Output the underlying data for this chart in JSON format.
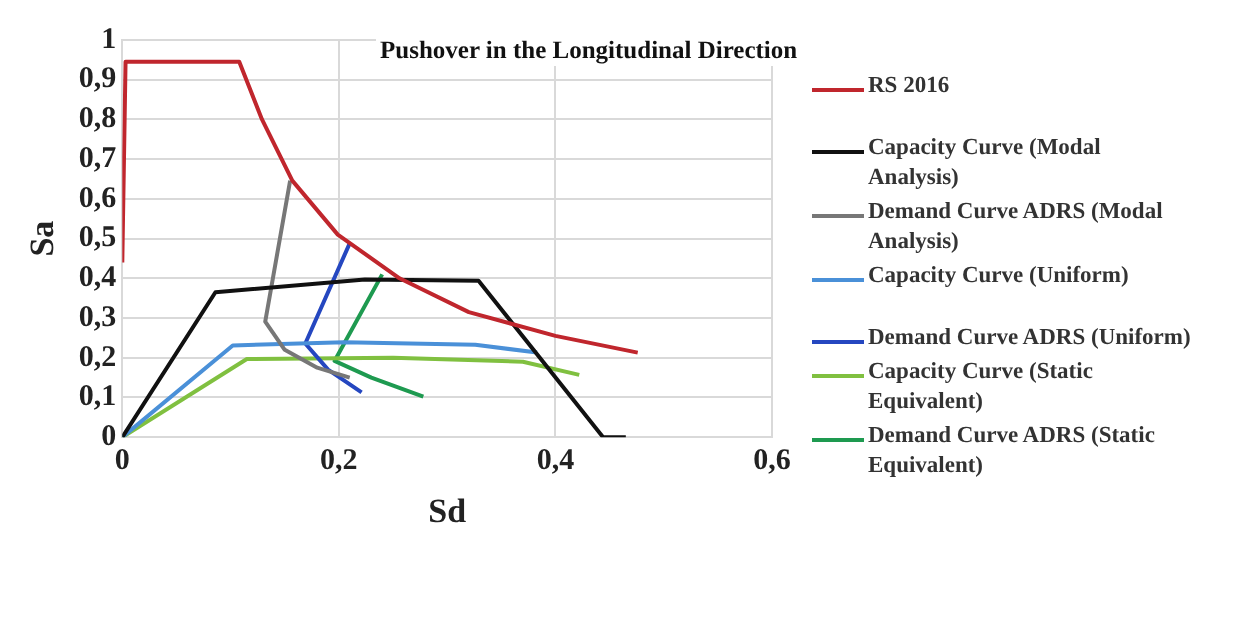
{
  "chart_data": {
    "type": "line",
    "title": "Pushover in the Longitudinal Direction",
    "xlabel": "Sd",
    "ylabel": "Sa",
    "xlim": [
      0,
      0.6
    ],
    "xticks": [
      0,
      {
        "value": 0.2,
        "label": "0,2"
      },
      {
        "value": 0.4,
        "label": "0,4"
      },
      {
        "value": 0.6,
        "label": "0,6"
      }
    ],
    "ylim": [
      0,
      1
    ],
    "yticks": [
      0,
      {
        "value": 0.1,
        "label": "0,1"
      },
      {
        "value": 0.2,
        "label": "0,2"
      },
      {
        "value": 0.3,
        "label": "0,3"
      },
      {
        "value": 0.4,
        "label": "0,4"
      },
      {
        "value": 0.5,
        "label": "0,5"
      },
      {
        "value": 0.6,
        "label": "0,6"
      },
      {
        "value": 0.7,
        "label": "0,7"
      },
      {
        "value": 0.8,
        "label": "0,8"
      },
      {
        "value": 0.9,
        "label": "0,9"
      },
      1
    ],
    "grid": true,
    "legend": "right",
    "series": [
      {
        "name": "RS 2016",
        "color": "#c0262d",
        "x": [
          0,
          0.003,
          0.108,
          0.129,
          0.157,
          0.199,
          0.256,
          0.32,
          0.4,
          0.476
        ],
        "values": [
          0.44,
          0.945,
          0.945,
          0.8,
          0.646,
          0.51,
          0.4,
          0.315,
          0.255,
          0.213
        ]
      },
      {
        "name": "Capacity Curve (Modal Analysis)",
        "color": "#111111",
        "x": [
          0,
          0.086,
          0.224,
          0.329,
          0.444,
          0.465
        ],
        "values": [
          0,
          0.365,
          0.397,
          0.394,
          0,
          0
        ]
      },
      {
        "name": "Demand Curve ADRS (Modal Analysis)",
        "color": "#777777",
        "x": [
          0.155,
          0.132,
          0.15,
          0.18,
          0.21
        ],
        "values": [
          0.646,
          0.291,
          0.22,
          0.175,
          0.15
        ]
      },
      {
        "name": "Capacity Curve (Uniform)",
        "color": "#4a90d8",
        "x": [
          0,
          0.102,
          0.205,
          0.326,
          0.383
        ],
        "values": [
          0,
          0.231,
          0.239,
          0.233,
          0.213
        ]
      },
      {
        "name": "Demand Curve ADRS (Uniform)",
        "color": "#2547c0",
        "x": [
          0.21,
          0.169,
          0.19,
          0.221
        ],
        "values": [
          0.488,
          0.236,
          0.17,
          0.113
        ]
      },
      {
        "name": "Capacity Curve (Static Equivalent)",
        "color": "#80c040",
        "x": [
          0,
          0.115,
          0.25,
          0.37,
          0.422
        ],
        "values": [
          0,
          0.197,
          0.2,
          0.19,
          0.157
        ]
      },
      {
        "name": "Demand Curve ADRS (Static Equivalent)",
        "color": "#1e9a50",
        "x": [
          0.24,
          0.196,
          0.23,
          0.278
        ],
        "values": [
          0.41,
          0.192,
          0.15,
          0.102
        ]
      }
    ]
  }
}
